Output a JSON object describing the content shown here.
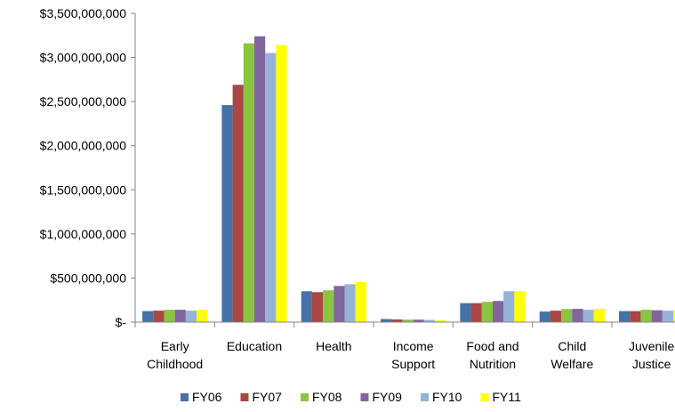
{
  "chart_data": {
    "type": "bar",
    "title": "",
    "xlabel": "",
    "ylabel": "",
    "ylim": [
      0,
      3500000000
    ],
    "y_ticks": [
      {
        "value": 0,
        "label": "$-"
      },
      {
        "value": 500000000,
        "label": "$500,000,000"
      },
      {
        "value": 1000000000,
        "label": "$1,000,000,000"
      },
      {
        "value": 1500000000,
        "label": "$1,500,000,000"
      },
      {
        "value": 2000000000,
        "label": "$2,000,000,000"
      },
      {
        "value": 2500000000,
        "label": "$2,500,000,000"
      },
      {
        "value": 3000000000,
        "label": "$3,000,000,000"
      },
      {
        "value": 3500000000,
        "label": "$3,500,000,000"
      }
    ],
    "grid": false,
    "legend_position": "bottom",
    "categories": [
      [
        "Early",
        "Childhood"
      ],
      [
        "Education"
      ],
      [
        "Health"
      ],
      [
        "Income",
        "Support"
      ],
      [
        "Food and",
        "Nutrition"
      ],
      [
        "Child",
        "Welfare"
      ],
      [
        "Juvenile",
        "Justice"
      ]
    ],
    "series": [
      {
        "name": "FY06",
        "color": "#4572A7",
        "values": [
          125000000,
          2460000000,
          350000000,
          35000000,
          215000000,
          120000000,
          125000000
        ]
      },
      {
        "name": "FY07",
        "color": "#AA4643",
        "values": [
          130000000,
          2690000000,
          340000000,
          30000000,
          215000000,
          130000000,
          125000000
        ]
      },
      {
        "name": "FY08",
        "color": "#89C541",
        "values": [
          140000000,
          3160000000,
          360000000,
          28000000,
          230000000,
          148000000,
          140000000
        ]
      },
      {
        "name": "FY09",
        "color": "#80659E",
        "values": [
          140000000,
          3240000000,
          410000000,
          28000000,
          240000000,
          150000000,
          135000000
        ]
      },
      {
        "name": "FY10",
        "color": "#95B3D7",
        "values": [
          130000000,
          3050000000,
          430000000,
          25000000,
          350000000,
          140000000,
          130000000
        ]
      },
      {
        "name": "FY11",
        "color": "#FFFF00",
        "values": [
          140000000,
          3140000000,
          455000000,
          20000000,
          350000000,
          150000000,
          135000000
        ]
      }
    ]
  }
}
